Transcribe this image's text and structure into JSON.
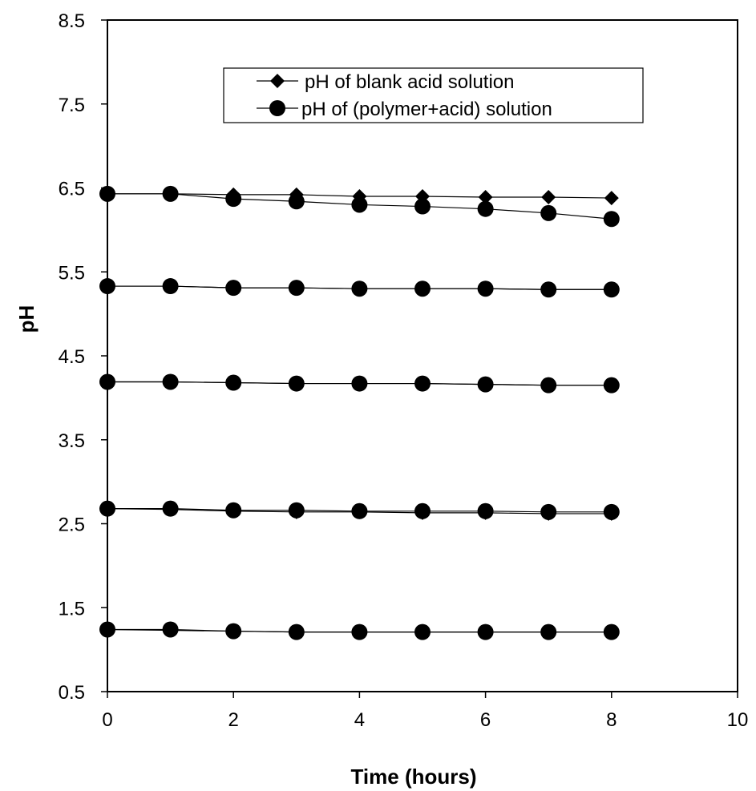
{
  "chart_data": {
    "type": "line",
    "title": "",
    "xlabel": "Time (hours)",
    "ylabel": "pH",
    "xlim": [
      0,
      10
    ],
    "ylim": [
      0.5,
      8.5
    ],
    "xticks": [
      0,
      2,
      4,
      6,
      8,
      10
    ],
    "yticks": [
      "0.5",
      "1.5",
      "2.5",
      "3.5",
      "4.5",
      "5.5",
      "6.5",
      "7.5",
      "8.5"
    ],
    "grid": false,
    "legend_position": "top-center",
    "line_color": "#000000",
    "x": [
      0,
      1,
      2,
      3,
      4,
      5,
      6,
      7,
      8
    ],
    "series": [
      {
        "name": "pH of blank acid solution",
        "marker": "diamond",
        "group": "6.4",
        "values": [
          6.43,
          6.43,
          6.42,
          6.42,
          6.4,
          6.4,
          6.39,
          6.39,
          6.38
        ]
      },
      {
        "name": "pH of (polymer+acid) solution",
        "marker": "circle",
        "group": "6.4",
        "values": [
          6.43,
          6.43,
          6.37,
          6.34,
          6.3,
          6.28,
          6.25,
          6.2,
          6.13
        ]
      },
      {
        "name": "pH of blank acid solution",
        "marker": "diamond",
        "group": "5.3",
        "values": [
          5.33,
          5.33,
          5.31,
          5.31,
          5.3,
          5.3,
          5.3,
          5.29,
          5.29
        ]
      },
      {
        "name": "pH of (polymer+acid) solution",
        "marker": "circle",
        "group": "5.3",
        "values": [
          5.33,
          5.33,
          5.31,
          5.31,
          5.3,
          5.3,
          5.3,
          5.29,
          5.29
        ]
      },
      {
        "name": "pH of blank acid solution",
        "marker": "diamond",
        "group": "4.2",
        "values": [
          4.19,
          4.19,
          4.18,
          4.17,
          4.17,
          4.17,
          4.16,
          4.15,
          4.15
        ]
      },
      {
        "name": "pH of (polymer+acid) solution",
        "marker": "circle",
        "group": "4.2",
        "values": [
          4.19,
          4.19,
          4.18,
          4.17,
          4.17,
          4.17,
          4.16,
          4.15,
          4.15
        ]
      },
      {
        "name": "pH of blank acid solution",
        "marker": "diamond",
        "group": "2.7",
        "values": [
          2.68,
          2.67,
          2.65,
          2.64,
          2.64,
          2.63,
          2.63,
          2.62,
          2.62
        ]
      },
      {
        "name": "pH of (polymer+acid) solution",
        "marker": "circle",
        "group": "2.7",
        "values": [
          2.68,
          2.68,
          2.66,
          2.66,
          2.65,
          2.65,
          2.65,
          2.64,
          2.64
        ]
      },
      {
        "name": "pH of blank acid solution",
        "marker": "diamond",
        "group": "1.2",
        "values": [
          1.24,
          1.23,
          1.22,
          1.21,
          1.21,
          1.21,
          1.21,
          1.21,
          1.21
        ]
      },
      {
        "name": "pH of (polymer+acid) solution",
        "marker": "circle",
        "group": "1.2",
        "values": [
          1.24,
          1.24,
          1.22,
          1.21,
          1.21,
          1.21,
          1.21,
          1.21,
          1.21
        ]
      }
    ],
    "legend": [
      {
        "label": "pH of blank acid solution",
        "marker": "diamond"
      },
      {
        "label": "pH of (polymer+acid) solution",
        "marker": "circle"
      }
    ]
  }
}
